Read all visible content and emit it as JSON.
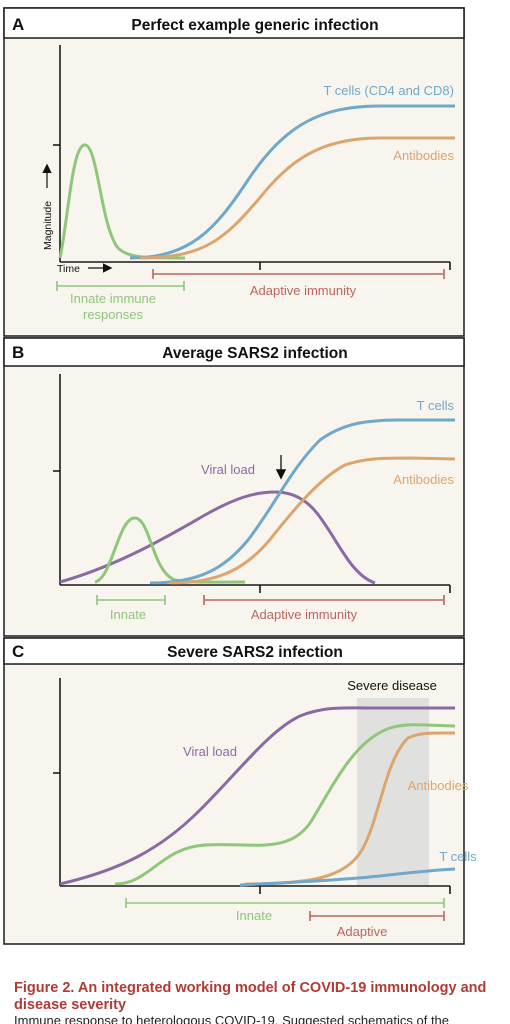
{
  "colors": {
    "panel_background": "#f8f5ee",
    "title_band": "#ffffff",
    "t_cells": "#6fa8c8",
    "antibodies": "#dba56e",
    "innate": "#8ec77a",
    "viral_load": "#8a6aa3",
    "adaptive_bar": "#b9665e",
    "severe_shading": "#dcdcdc",
    "caption": "#b03a34"
  },
  "panel_a": {
    "letter": "A",
    "title": "Perfect example generic infection",
    "y_axis_label": "Magnitude",
    "x_axis_label": "Time",
    "t_cells_label": "T cells (CD4 and CD8)",
    "antibodies_label": "Antibodies",
    "innate_label_line1": "Innate immune",
    "innate_label_line2": "responses",
    "adaptive_label": "Adaptive immunity"
  },
  "panel_b": {
    "letter": "B",
    "title": "Average SARS2 infection",
    "t_cells_label": "T cells",
    "antibodies_label": "Antibodies",
    "viral_load_label": "Viral load",
    "innate_label": "Innate",
    "adaptive_label": "Adaptive immunity"
  },
  "panel_c": {
    "letter": "C",
    "title": "Severe SARS2 infection",
    "severe_label": "Severe disease",
    "viral_load_label": "Viral load",
    "antibodies_label": "Antibodies",
    "t_cells_label": "T cells",
    "innate_label": "Innate",
    "adaptive_label": "Adaptive"
  },
  "caption": "Figure 2. An integrated working model of COVID-19 immunology and disease severity",
  "body_fragment": "Immune response to heterologous COVID-19. Suggested schematics of the"
}
